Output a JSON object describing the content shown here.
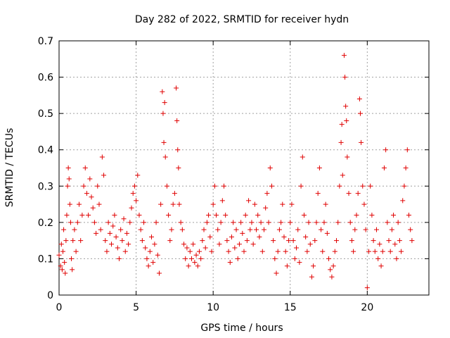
{
  "chart_data": {
    "type": "scatter",
    "title": "Day 282 of 2022, SRMTID for receiver hydn",
    "xlabel": "GPS time / hours",
    "ylabel": "SRMTID / TECUs",
    "xlim": [
      0,
      24
    ],
    "ylim": [
      0,
      0.7
    ],
    "x_ticks": [
      0,
      5,
      10,
      15,
      20
    ],
    "y_ticks": [
      0,
      0.1,
      0.2,
      0.3,
      0.4,
      0.5,
      0.6,
      0.7
    ],
    "x_tick_labels": [
      "0",
      "5",
      "10",
      "15",
      "20"
    ],
    "y_tick_labels": [
      "0",
      "0.1",
      "0.2",
      "0.3",
      "0.4",
      "0.5",
      "0.6",
      "0.7"
    ],
    "grid": true,
    "marker": "+",
    "color": "#e00000",
    "series": [
      {
        "name": "SRMTID",
        "points": [
          [
            0.0,
            0.11
          ],
          [
            0.1,
            0.08
          ],
          [
            0.15,
            0.14
          ],
          [
            0.2,
            0.07
          ],
          [
            0.25,
            0.12
          ],
          [
            0.3,
            0.18
          ],
          [
            0.35,
            0.09
          ],
          [
            0.4,
            0.06
          ],
          [
            0.45,
            0.15
          ],
          [
            0.5,
            0.22
          ],
          [
            0.55,
            0.3
          ],
          [
            0.6,
            0.35
          ],
          [
            0.65,
            0.32
          ],
          [
            0.7,
            0.25
          ],
          [
            0.75,
            0.2
          ],
          [
            0.8,
            0.1
          ],
          [
            0.85,
            0.07
          ],
          [
            0.9,
            0.15
          ],
          [
            1.0,
            0.18
          ],
          [
            1.1,
            0.12
          ],
          [
            1.2,
            0.2
          ],
          [
            1.3,
            0.25
          ],
          [
            1.4,
            0.15
          ],
          [
            1.5,
            0.22
          ],
          [
            1.6,
            0.3
          ],
          [
            1.7,
            0.35
          ],
          [
            1.8,
            0.28
          ],
          [
            1.9,
            0.22
          ],
          [
            2.0,
            0.32
          ],
          [
            2.1,
            0.27
          ],
          [
            2.2,
            0.24
          ],
          [
            2.3,
            0.2
          ],
          [
            2.4,
            0.17
          ],
          [
            2.5,
            0.3
          ],
          [
            2.6,
            0.25
          ],
          [
            2.7,
            0.18
          ],
          [
            2.8,
            0.38
          ],
          [
            2.9,
            0.33
          ],
          [
            3.0,
            0.15
          ],
          [
            3.1,
            0.12
          ],
          [
            3.2,
            0.2
          ],
          [
            3.3,
            0.17
          ],
          [
            3.4,
            0.14
          ],
          [
            3.5,
            0.19
          ],
          [
            3.6,
            0.22
          ],
          [
            3.7,
            0.16
          ],
          [
            3.8,
            0.13
          ],
          [
            3.9,
            0.1
          ],
          [
            4.0,
            0.18
          ],
          [
            4.1,
            0.15
          ],
          [
            4.2,
            0.21
          ],
          [
            4.3,
            0.12
          ],
          [
            4.4,
            0.17
          ],
          [
            4.5,
            0.14
          ],
          [
            4.6,
            0.2
          ],
          [
            4.7,
            0.24
          ],
          [
            4.8,
            0.28
          ],
          [
            4.9,
            0.3
          ],
          [
            5.0,
            0.26
          ],
          [
            5.1,
            0.33
          ],
          [
            5.2,
            0.22
          ],
          [
            5.3,
            0.18
          ],
          [
            5.4,
            0.15
          ],
          [
            5.5,
            0.2
          ],
          [
            5.6,
            0.13
          ],
          [
            5.7,
            0.1
          ],
          [
            5.8,
            0.08
          ],
          [
            5.9,
            0.12
          ],
          [
            6.0,
            0.16
          ],
          [
            6.1,
            0.09
          ],
          [
            6.2,
            0.14
          ],
          [
            6.3,
            0.2
          ],
          [
            6.4,
            0.11
          ],
          [
            6.5,
            0.06
          ],
          [
            6.6,
            0.25
          ],
          [
            6.7,
            0.56
          ],
          [
            6.75,
            0.5
          ],
          [
            6.8,
            0.42
          ],
          [
            6.85,
            0.53
          ],
          [
            6.9,
            0.38
          ],
          [
            7.0,
            0.3
          ],
          [
            7.1,
            0.22
          ],
          [
            7.2,
            0.15
          ],
          [
            7.3,
            0.18
          ],
          [
            7.4,
            0.25
          ],
          [
            7.5,
            0.28
          ],
          [
            7.6,
            0.57
          ],
          [
            7.65,
            0.48
          ],
          [
            7.7,
            0.4
          ],
          [
            7.75,
            0.35
          ],
          [
            7.8,
            0.25
          ],
          [
            7.9,
            0.2
          ],
          [
            8.0,
            0.18
          ],
          [
            8.1,
            0.14
          ],
          [
            8.2,
            0.1
          ],
          [
            8.3,
            0.13
          ],
          [
            8.4,
            0.08
          ],
          [
            8.5,
            0.12
          ],
          [
            8.6,
            0.1
          ],
          [
            8.7,
            0.14
          ],
          [
            8.8,
            0.09
          ],
          [
            8.9,
            0.11
          ],
          [
            9.0,
            0.08
          ],
          [
            9.1,
            0.12
          ],
          [
            9.2,
            0.1
          ],
          [
            9.3,
            0.15
          ],
          [
            9.4,
            0.18
          ],
          [
            9.5,
            0.13
          ],
          [
            9.6,
            0.2
          ],
          [
            9.7,
            0.22
          ],
          [
            9.8,
            0.16
          ],
          [
            9.9,
            0.12
          ],
          [
            10.0,
            0.25
          ],
          [
            10.1,
            0.3
          ],
          [
            10.2,
            0.22
          ],
          [
            10.3,
            0.18
          ],
          [
            10.4,
            0.14
          ],
          [
            10.5,
            0.2
          ],
          [
            10.6,
            0.26
          ],
          [
            10.7,
            0.3
          ],
          [
            10.8,
            0.22
          ],
          [
            10.9,
            0.15
          ],
          [
            11.0,
            0.12
          ],
          [
            11.1,
            0.09
          ],
          [
            11.2,
            0.16
          ],
          [
            11.3,
            0.2
          ],
          [
            11.4,
            0.13
          ],
          [
            11.5,
            0.18
          ],
          [
            11.6,
            0.1
          ],
          [
            11.7,
            0.14
          ],
          [
            11.8,
            0.2
          ],
          [
            11.9,
            0.17
          ],
          [
            12.0,
            0.12
          ],
          [
            12.1,
            0.22
          ],
          [
            12.2,
            0.15
          ],
          [
            12.3,
            0.26
          ],
          [
            12.4,
            0.18
          ],
          [
            12.5,
            0.2
          ],
          [
            12.6,
            0.14
          ],
          [
            12.7,
            0.25
          ],
          [
            12.8,
            0.18
          ],
          [
            12.9,
            0.22
          ],
          [
            13.0,
            0.16
          ],
          [
            13.1,
            0.2
          ],
          [
            13.2,
            0.12
          ],
          [
            13.3,
            0.18
          ],
          [
            13.4,
            0.24
          ],
          [
            13.5,
            0.28
          ],
          [
            13.6,
            0.2
          ],
          [
            13.7,
            0.35
          ],
          [
            13.8,
            0.3
          ],
          [
            13.9,
            0.15
          ],
          [
            14.0,
            0.1
          ],
          [
            14.1,
            0.06
          ],
          [
            14.2,
            0.12
          ],
          [
            14.3,
            0.18
          ],
          [
            14.4,
            0.2
          ],
          [
            14.5,
            0.25
          ],
          [
            14.6,
            0.16
          ],
          [
            14.7,
            0.12
          ],
          [
            14.8,
            0.08
          ],
          [
            14.9,
            0.15
          ],
          [
            15.0,
            0.2
          ],
          [
            15.1,
            0.25
          ],
          [
            15.2,
            0.15
          ],
          [
            15.3,
            0.1
          ],
          [
            15.4,
            0.13
          ],
          [
            15.5,
            0.18
          ],
          [
            15.6,
            0.09
          ],
          [
            15.7,
            0.3
          ],
          [
            15.8,
            0.38
          ],
          [
            15.9,
            0.22
          ],
          [
            16.0,
            0.16
          ],
          [
            16.1,
            0.12
          ],
          [
            16.2,
            0.2
          ],
          [
            16.3,
            0.14
          ],
          [
            16.4,
            0.05
          ],
          [
            16.5,
            0.08
          ],
          [
            16.6,
            0.15
          ],
          [
            16.7,
            0.2
          ],
          [
            16.8,
            0.28
          ],
          [
            16.9,
            0.35
          ],
          [
            17.0,
            0.18
          ],
          [
            17.1,
            0.12
          ],
          [
            17.2,
            0.2
          ],
          [
            17.3,
            0.25
          ],
          [
            17.4,
            0.17
          ],
          [
            17.5,
            0.1
          ],
          [
            17.6,
            0.07
          ],
          [
            17.7,
            0.05
          ],
          [
            17.8,
            0.08
          ],
          [
            17.9,
            0.12
          ],
          [
            18.0,
            0.15
          ],
          [
            18.1,
            0.2
          ],
          [
            18.2,
            0.3
          ],
          [
            18.3,
            0.42
          ],
          [
            18.35,
            0.47
          ],
          [
            18.4,
            0.33
          ],
          [
            18.5,
            0.66
          ],
          [
            18.55,
            0.6
          ],
          [
            18.6,
            0.52
          ],
          [
            18.65,
            0.48
          ],
          [
            18.7,
            0.38
          ],
          [
            18.8,
            0.28
          ],
          [
            18.9,
            0.2
          ],
          [
            19.0,
            0.15
          ],
          [
            19.1,
            0.12
          ],
          [
            19.2,
            0.18
          ],
          [
            19.3,
            0.22
          ],
          [
            19.4,
            0.28
          ],
          [
            19.5,
            0.54
          ],
          [
            19.55,
            0.5
          ],
          [
            19.6,
            0.42
          ],
          [
            19.7,
            0.3
          ],
          [
            19.8,
            0.25
          ],
          [
            19.9,
            0.18
          ],
          [
            20.0,
            0.02
          ],
          [
            20.1,
            0.12
          ],
          [
            20.2,
            0.3
          ],
          [
            20.3,
            0.22
          ],
          [
            20.4,
            0.15
          ],
          [
            20.5,
            0.12
          ],
          [
            20.6,
            0.18
          ],
          [
            20.7,
            0.1
          ],
          [
            20.8,
            0.14
          ],
          [
            20.9,
            0.08
          ],
          [
            21.0,
            0.12
          ],
          [
            21.1,
            0.35
          ],
          [
            21.2,
            0.4
          ],
          [
            21.3,
            0.2
          ],
          [
            21.4,
            0.15
          ],
          [
            21.5,
            0.12
          ],
          [
            21.6,
            0.18
          ],
          [
            21.7,
            0.22
          ],
          [
            21.8,
            0.14
          ],
          [
            21.9,
            0.1
          ],
          [
            22.0,
            0.2
          ],
          [
            22.1,
            0.15
          ],
          [
            22.2,
            0.12
          ],
          [
            22.3,
            0.26
          ],
          [
            22.4,
            0.3
          ],
          [
            22.5,
            0.35
          ],
          [
            22.6,
            0.4
          ],
          [
            22.7,
            0.22
          ],
          [
            22.8,
            0.18
          ],
          [
            22.9,
            0.15
          ]
        ]
      }
    ]
  }
}
